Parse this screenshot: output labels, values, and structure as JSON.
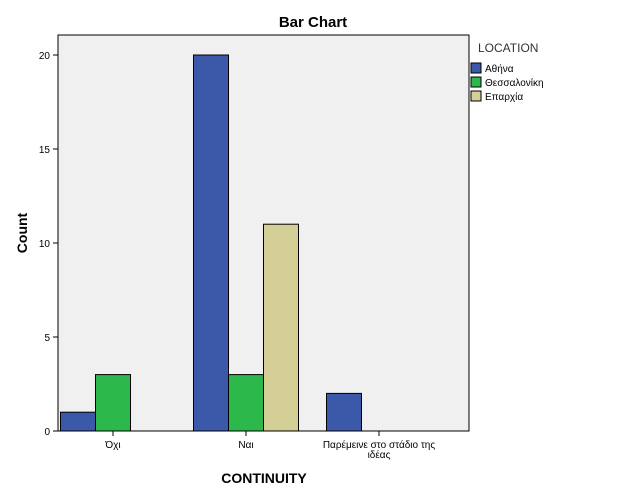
{
  "chart_data": {
    "type": "bar",
    "title": "Bar Chart",
    "xlabel": "CONTINUITY",
    "ylabel": "Count",
    "ylim": [
      0,
      20
    ],
    "yticks": [
      0,
      5,
      10,
      15,
      20
    ],
    "categories": [
      "Όχι",
      "Ναι",
      "Παρέμεινε στο στάδιο της ιδέας"
    ],
    "category_label_lines": [
      [
        "Όχι"
      ],
      [
        "Ναι"
      ],
      [
        "Παρέμεινε στο στάδιο της",
        "ιδέας"
      ]
    ],
    "legend_title": "LOCATION",
    "legend_position": "right",
    "grid": false,
    "series": [
      {
        "name": "Αθήνα",
        "color": "#3c58a8",
        "values": [
          1,
          20,
          2
        ]
      },
      {
        "name": "Θεσσαλονίκη",
        "color": "#2db84b",
        "values": [
          3,
          3,
          0
        ]
      },
      {
        "name": "Επαρχία",
        "color": "#d4cf96",
        "values": [
          0,
          11,
          0
        ]
      }
    ],
    "plot_background": "#f0f0f0"
  }
}
